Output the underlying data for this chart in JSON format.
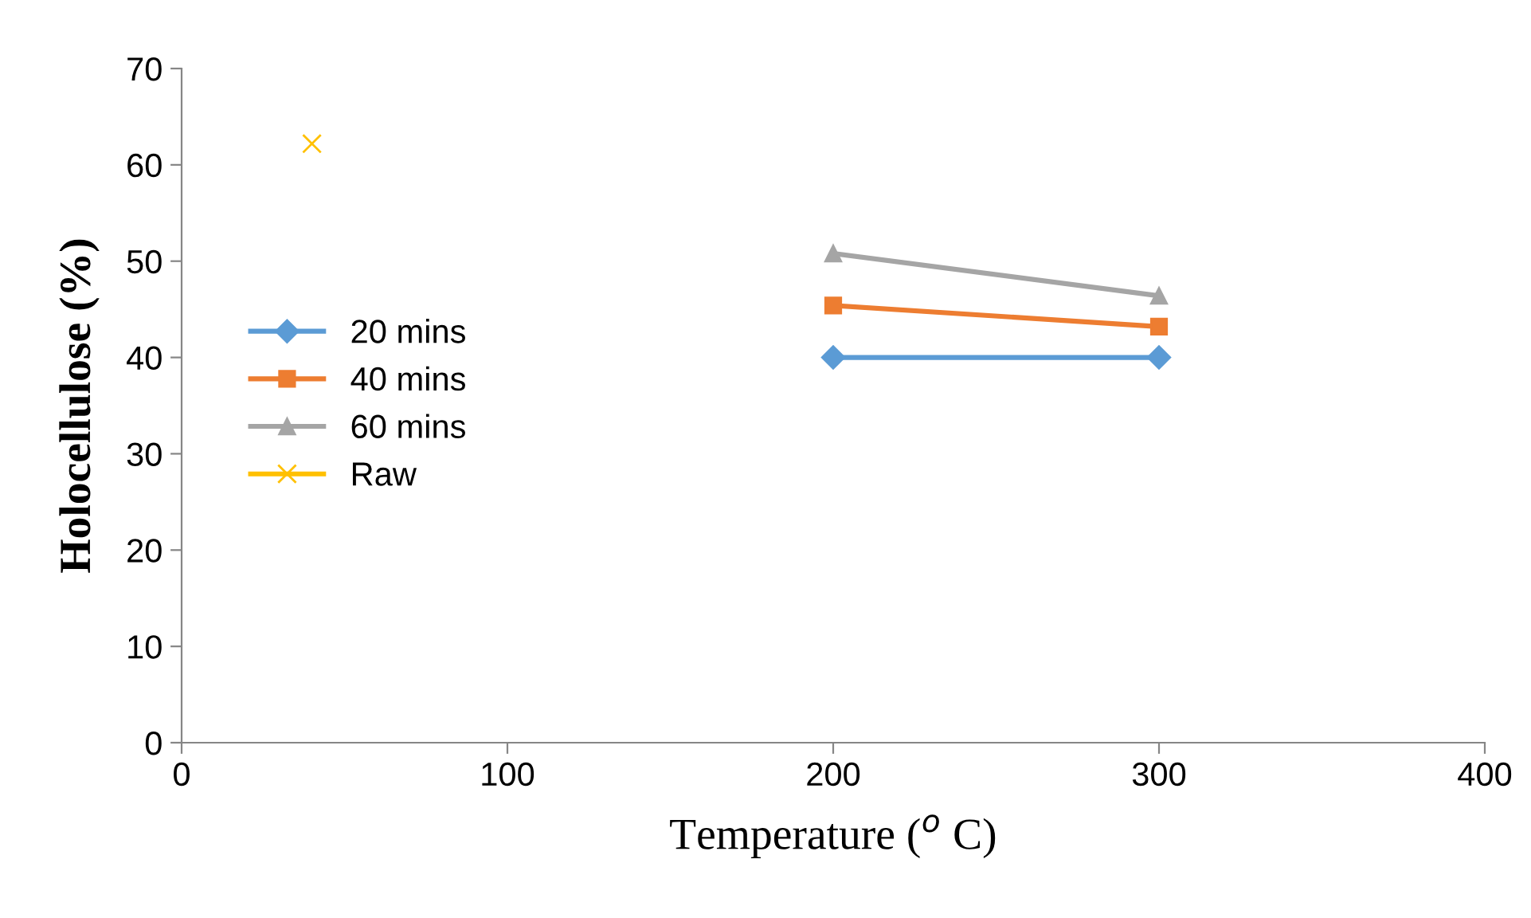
{
  "chart_data": {
    "type": "line",
    "xlabel": "Temperature ($^{o}$ C)",
    "ylabel": "Holocellulose (%)",
    "xlim": [
      0,
      400
    ],
    "xticks": [
      0,
      100,
      200,
      300,
      400
    ],
    "ylim": [
      0,
      70
    ],
    "yticks": [
      0,
      10,
      20,
      30,
      40,
      50,
      60,
      70
    ],
    "grid": false,
    "legend": "center left",
    "series": [
      {
        "name": "20 mins",
        "color": "#5b9bd5",
        "marker": "diamond",
        "x": [
          200,
          300
        ],
        "values": [
          40.0,
          40.0
        ]
      },
      {
        "name": "40 mins",
        "color": "#ed7d31",
        "marker": "square",
        "x": [
          200,
          300
        ],
        "values": [
          45.4,
          43.2
        ]
      },
      {
        "name": "60 mins",
        "color": "#a5a5a5",
        "marker": "triangle",
        "x": [
          200,
          300
        ],
        "values": [
          50.8,
          46.4
        ]
      },
      {
        "name": "Raw",
        "color": "#ffc000",
        "marker": "cross",
        "x": [
          40
        ],
        "values": [
          62.2
        ]
      }
    ]
  }
}
